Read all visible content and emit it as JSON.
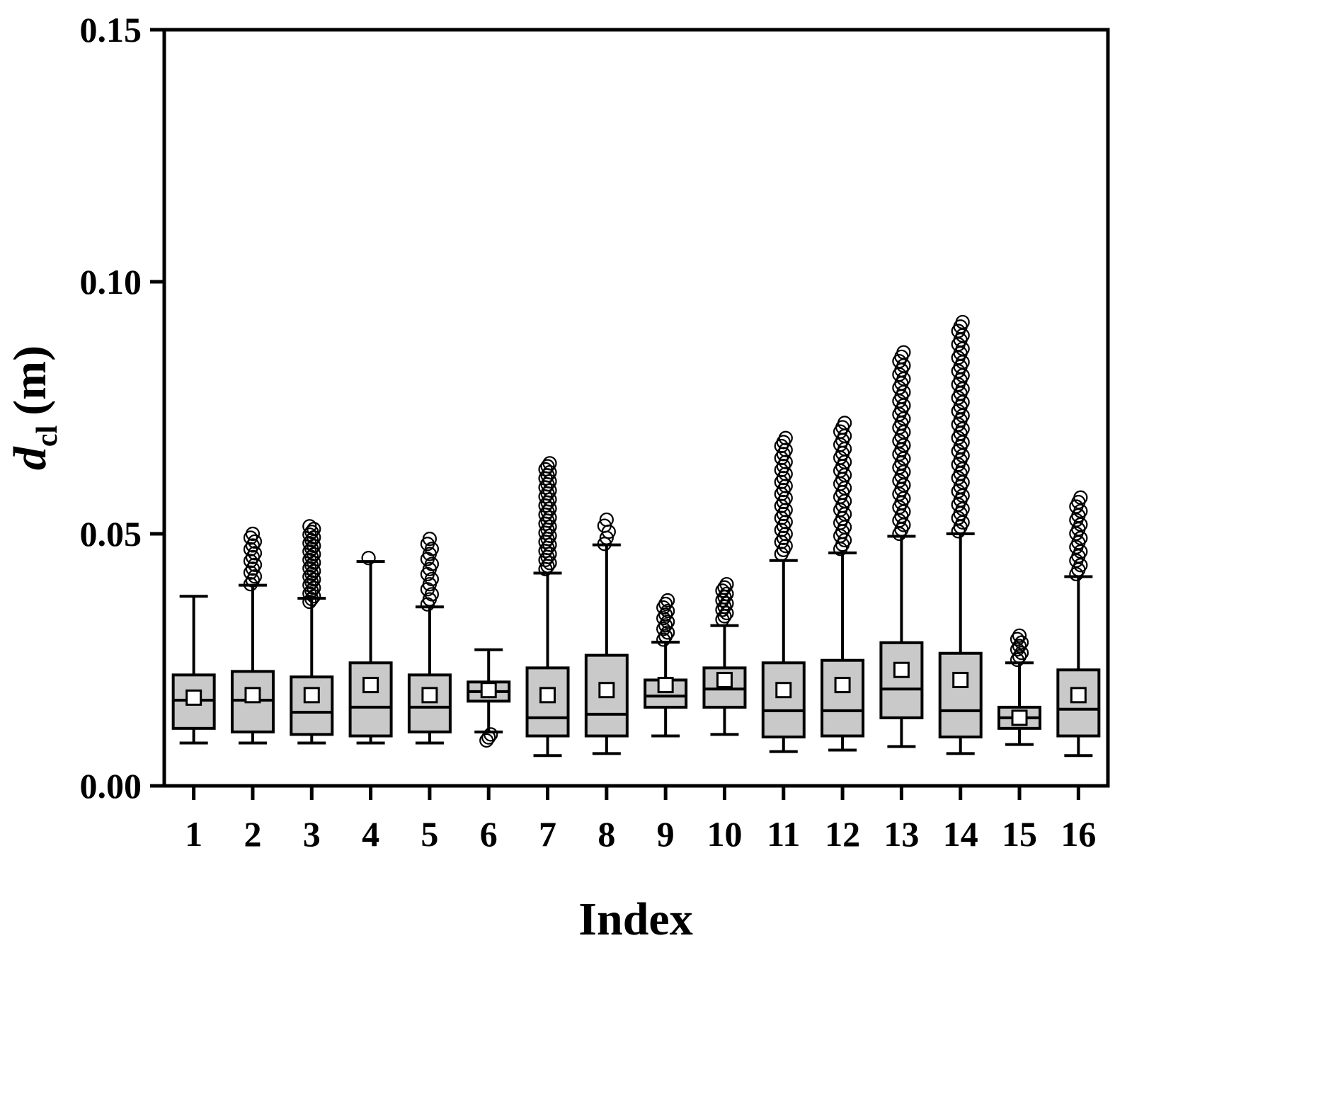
{
  "chart_data": {
    "type": "box",
    "title": "",
    "xlabel": "Index",
    "ylabel": "d_cl (m)",
    "ylabel_parts": {
      "symbol": "d",
      "sub": "cl",
      "unit": "(m)"
    },
    "ylim": [
      0.0,
      0.15
    ],
    "yticks": [
      {
        "value": 0.0,
        "label": "0.00"
      },
      {
        "value": 0.05,
        "label": "0.05"
      },
      {
        "value": 0.1,
        "label": "0.10"
      },
      {
        "value": 0.15,
        "label": "0.15"
      }
    ],
    "categories": [
      "1",
      "2",
      "3",
      "4",
      "5",
      "6",
      "7",
      "8",
      "9",
      "10",
      "11",
      "12",
      "13",
      "14",
      "15",
      "16"
    ],
    "legend": "none",
    "grid": false,
    "colors": {
      "box_fill": "#c9c9c9",
      "stroke": "#000000",
      "mean_fill": "#ffffff"
    },
    "boxes": [
      {
        "category": "1",
        "whisker_low": 0.0085,
        "q1": 0.0114,
        "median": 0.017,
        "q3": 0.022,
        "whisker_high": 0.0376,
        "mean": 0.0175,
        "outliers_high": null,
        "outliers_low": null
      },
      {
        "category": "2",
        "whisker_low": 0.0085,
        "q1": 0.0107,
        "median": 0.017,
        "q3": 0.0227,
        "whisker_high": 0.0398,
        "mean": 0.018,
        "outliers_high": {
          "min": 0.04,
          "max": 0.05,
          "count": 14
        },
        "outliers_low": null
      },
      {
        "category": "3",
        "whisker_low": 0.0085,
        "q1": 0.0102,
        "median": 0.0146,
        "q3": 0.0216,
        "whisker_high": 0.0372,
        "mean": 0.018,
        "outliers_high": {
          "min": 0.0365,
          "max": 0.0515,
          "count": 28
        },
        "outliers_low": null
      },
      {
        "category": "4",
        "whisker_low": 0.0085,
        "q1": 0.0099,
        "median": 0.0156,
        "q3": 0.0244,
        "whisker_high": 0.0445,
        "mean": 0.02,
        "outliers_high": {
          "min": 0.0452,
          "max": 0.0452,
          "count": 1
        },
        "outliers_low": null
      },
      {
        "category": "5",
        "whisker_low": 0.0085,
        "q1": 0.0107,
        "median": 0.0156,
        "q3": 0.022,
        "whisker_high": 0.0355,
        "mean": 0.018,
        "outliers_high": {
          "min": 0.036,
          "max": 0.049,
          "count": 14
        },
        "outliers_low": null
      },
      {
        "category": "6",
        "whisker_low": 0.0107,
        "q1": 0.0168,
        "median": 0.0187,
        "q3": 0.0206,
        "whisker_high": 0.027,
        "mean": 0.019,
        "outliers_high": null,
        "outliers_low": {
          "min": 0.009,
          "max": 0.0102,
          "count": 3
        }
      },
      {
        "category": "7",
        "whisker_low": 0.006,
        "q1": 0.0099,
        "median": 0.0135,
        "q3": 0.0234,
        "whisker_high": 0.0422,
        "mean": 0.018,
        "outliers_high": {
          "min": 0.043,
          "max": 0.064,
          "count": 36
        },
        "outliers_low": null
      },
      {
        "category": "8",
        "whisker_low": 0.0064,
        "q1": 0.0099,
        "median": 0.0142,
        "q3": 0.0259,
        "whisker_high": 0.0478,
        "mean": 0.019,
        "outliers_high": {
          "min": 0.048,
          "max": 0.0528,
          "count": 5
        },
        "outliers_low": null
      },
      {
        "category": "9",
        "whisker_low": 0.0099,
        "q1": 0.0156,
        "median": 0.0178,
        "q3": 0.021,
        "whisker_high": 0.0285,
        "mean": 0.02,
        "outliers_high": {
          "min": 0.029,
          "max": 0.0368,
          "count": 12
        },
        "outliers_low": null
      },
      {
        "category": "10",
        "whisker_low": 0.0102,
        "q1": 0.0156,
        "median": 0.0192,
        "q3": 0.0234,
        "whisker_high": 0.0318,
        "mean": 0.021,
        "outliers_high": {
          "min": 0.033,
          "max": 0.04,
          "count": 12
        },
        "outliers_low": null
      },
      {
        "category": "11",
        "whisker_low": 0.0068,
        "q1": 0.0097,
        "median": 0.0149,
        "q3": 0.0244,
        "whisker_high": 0.0447,
        "mean": 0.019,
        "outliers_high": {
          "min": 0.046,
          "max": 0.069,
          "count": 30
        },
        "outliers_low": null
      },
      {
        "category": "12",
        "whisker_low": 0.0071,
        "q1": 0.0099,
        "median": 0.0149,
        "q3": 0.0249,
        "whisker_high": 0.0462,
        "mean": 0.02,
        "outliers_high": {
          "min": 0.047,
          "max": 0.072,
          "count": 30
        },
        "outliers_low": null
      },
      {
        "category": "13",
        "whisker_low": 0.0078,
        "q1": 0.0135,
        "median": 0.0192,
        "q3": 0.0284,
        "whisker_high": 0.0495,
        "mean": 0.023,
        "outliers_high": {
          "min": 0.05,
          "max": 0.086,
          "count": 42
        },
        "outliers_low": null
      },
      {
        "category": "14",
        "whisker_low": 0.0064,
        "q1": 0.0097,
        "median": 0.0149,
        "q3": 0.0263,
        "whisker_high": 0.05,
        "mean": 0.021,
        "outliers_high": {
          "min": 0.0505,
          "max": 0.092,
          "count": 48
        },
        "outliers_low": null
      },
      {
        "category": "15",
        "whisker_low": 0.0082,
        "q1": 0.0114,
        "median": 0.0135,
        "q3": 0.0156,
        "whisker_high": 0.0244,
        "mean": 0.0135,
        "outliers_high": {
          "min": 0.025,
          "max": 0.0298,
          "count": 8
        },
        "outliers_low": null
      },
      {
        "category": "16",
        "whisker_low": 0.006,
        "q1": 0.0099,
        "median": 0.0152,
        "q3": 0.023,
        "whisker_high": 0.0415,
        "mean": 0.018,
        "outliers_high": {
          "min": 0.042,
          "max": 0.0572,
          "count": 18
        },
        "outliers_low": null
      }
    ]
  }
}
